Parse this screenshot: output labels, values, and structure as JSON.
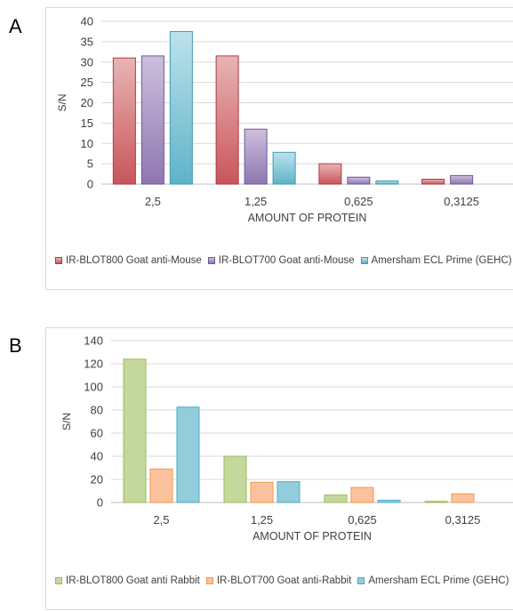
{
  "panels": [
    {
      "letter": "A"
    },
    {
      "letter": "B"
    }
  ],
  "chart_data": [
    {
      "type": "bar",
      "title": "",
      "xlabel": "AMOUNT OF PROTEIN",
      "ylabel": "S/N",
      "categories": [
        "2,5",
        "1,25",
        "0,625",
        "0,3125"
      ],
      "ylim": [
        0,
        40
      ],
      "yticks": [
        0,
        5,
        10,
        15,
        20,
        25,
        30,
        35,
        40
      ],
      "grid": true,
      "legend_position": "bottom",
      "series": [
        {
          "name": "IR-BLOT800 Goat anti-Mouse",
          "values": [
            31,
            31.5,
            5,
            1.2
          ],
          "fill_top": "#e8b4b4",
          "fill_bottom": "#c9555a",
          "stroke": "#b03a40"
        },
        {
          "name": "IR-BLOT700 Goat anti-Mouse",
          "values": [
            31.5,
            13.5,
            1.7,
            2.1
          ],
          "fill_top": "#cdbfdd",
          "fill_bottom": "#8f76b1",
          "stroke": "#6d579a"
        },
        {
          "name": "Amersham ECL Prime (GEHC)",
          "values": [
            37.5,
            7.8,
            0.8,
            0
          ],
          "fill_top": "#bde2ec",
          "fill_bottom": "#5fb3c8",
          "stroke": "#3f9ab3"
        }
      ]
    },
    {
      "type": "bar",
      "title": "",
      "xlabel": "AMOUNT OF PROTEIN",
      "ylabel": "S/N",
      "categories": [
        "2,5",
        "1,25",
        "0,625",
        "0,3125"
      ],
      "ylim": [
        0,
        140
      ],
      "yticks": [
        0,
        20,
        40,
        60,
        80,
        100,
        120,
        140
      ],
      "grid": true,
      "legend_position": "bottom",
      "series": [
        {
          "name": "IR-BLOT800 Goat anti Rabbit",
          "values": [
            124,
            40,
            6.5,
            1
          ],
          "fill_top": "#c4d89d",
          "fill_bottom": "#c4d89d",
          "stroke": "#9bbb59"
        },
        {
          "name": "IR-BLOT700 Goat anti-Rabbit",
          "values": [
            29,
            17.5,
            13,
            7.5
          ],
          "fill_top": "#fbc39d",
          "fill_bottom": "#fbc39d",
          "stroke": "#f79646"
        },
        {
          "name": "Amersham ECL Prime (GEHC)",
          "values": [
            82.5,
            18,
            2,
            0
          ],
          "fill_top": "#92cddc",
          "fill_bottom": "#92cddc",
          "stroke": "#4bacc6"
        }
      ]
    }
  ]
}
